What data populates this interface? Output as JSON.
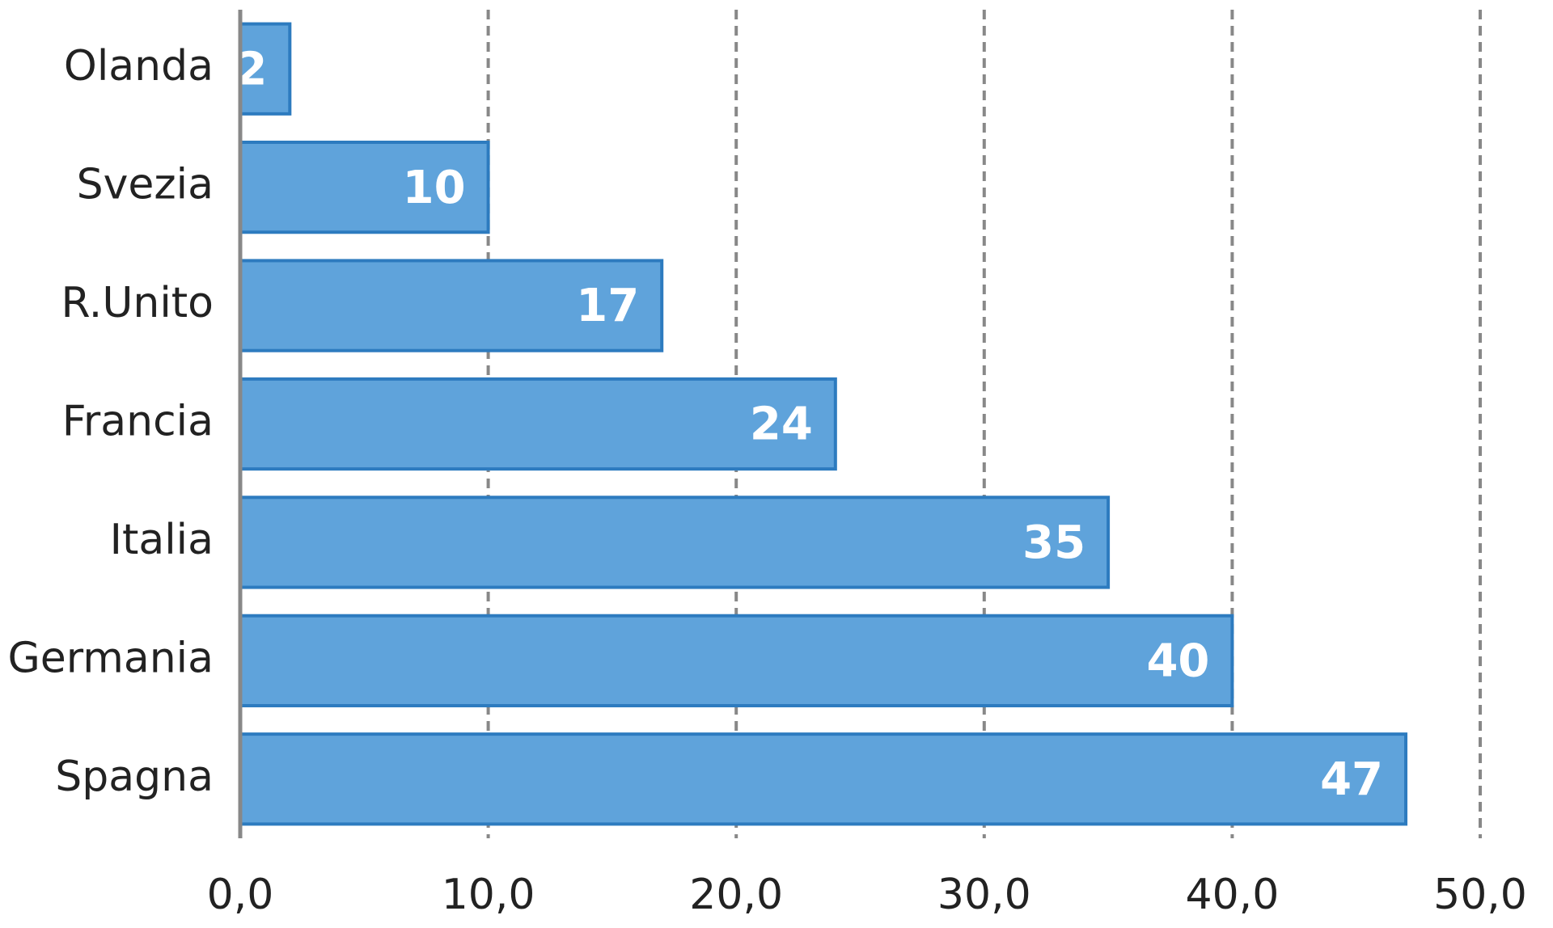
{
  "chart_data": {
    "type": "hbar",
    "categories": [
      "Olanda",
      "Svezia",
      "R.Unito",
      "Francia",
      "Italia",
      "Germania",
      "Spagna"
    ],
    "values": [
      2,
      10,
      17,
      24,
      35,
      40,
      47
    ],
    "color": "#5fa3db",
    "edge_color": "#2d7bbf",
    "xlim": [
      0,
      50
    ],
    "xticks": [
      {
        "value": 0,
        "label": "0,0"
      },
      {
        "value": 10,
        "label": "10,0"
      },
      {
        "value": 20,
        "label": "20,0"
      },
      {
        "value": 30,
        "label": "30,0"
      },
      {
        "value": 40,
        "label": "40,0"
      },
      {
        "value": 50,
        "label": "50,0"
      }
    ],
    "grid": true
  }
}
